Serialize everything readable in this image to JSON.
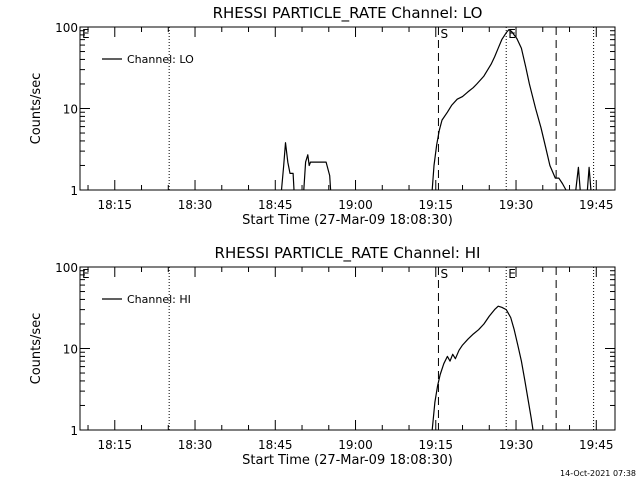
{
  "timestamp": "14-Oct-2021 07:38",
  "chart_data": [
    {
      "type": "line",
      "title": "RHESSI PARTICLE_RATE Channel: LO",
      "xlabel": "Start Time (27-Mar-09 18:08:30)",
      "ylabel": "Counts/sec",
      "xlim": [
        "18:08:30",
        "19:48:30"
      ],
      "ylim": [
        1,
        100
      ],
      "yscale": "log",
      "x_ticks": [
        "18:15",
        "18:30",
        "18:45",
        "19:00",
        "19:15",
        "19:30",
        "19:45"
      ],
      "y_ticks": [
        "1",
        "10",
        "100"
      ],
      "legend": {
        "position": "top-left",
        "entries": [
          "Channel: LO"
        ]
      },
      "markers": [
        {
          "label": "E",
          "time": "18:08:30",
          "style": "none"
        },
        {
          "label": "",
          "time": "18:25:10",
          "style": "dotted"
        },
        {
          "label": "S",
          "time": "19:15:30",
          "style": "dashed"
        },
        {
          "label": "E",
          "time": "19:28:10",
          "style": "dotted"
        },
        {
          "label": "",
          "time": "19:37:30",
          "style": "dashed"
        },
        {
          "label": "",
          "time": "19:44:30",
          "style": "dotted"
        }
      ],
      "series": [
        {
          "name": "Channel: LO",
          "segments": [
            [
              [
                "18:46:10",
                1
              ],
              [
                "18:46:35",
                2
              ],
              [
                "18:46:55",
                3.8
              ],
              [
                "18:47:20",
                2.2
              ],
              [
                "18:47:45",
                1.6
              ],
              [
                "18:48:20",
                1.6
              ],
              [
                "18:48:30",
                1
              ]
            ],
            [
              [
                "18:50:20",
                1
              ],
              [
                "18:50:40",
                2.2
              ],
              [
                "18:51:05",
                2.7
              ],
              [
                "18:51:20",
                2
              ],
              [
                "18:51:35",
                2.2
              ],
              [
                "18:52:45",
                2.2
              ],
              [
                "18:53:50",
                2.2
              ],
              [
                "18:54:30",
                2.2
              ],
              [
                "18:55:10",
                1.5
              ],
              [
                "18:55:20",
                1
              ]
            ],
            [
              [
                "19:14:20",
                1
              ],
              [
                "19:14:40",
                2
              ],
              [
                "19:15:10",
                3.6
              ],
              [
                "19:15:40",
                5.4
              ],
              [
                "19:16:10",
                7.2
              ],
              [
                "19:17:10",
                9
              ],
              [
                "19:18:00",
                11
              ],
              [
                "19:19:00",
                13
              ],
              [
                "19:20:00",
                14
              ],
              [
                "19:21:00",
                16
              ],
              [
                "19:22:00",
                18
              ],
              [
                "19:22:40",
                20
              ],
              [
                "19:24:00",
                25
              ],
              [
                "19:25:20",
                35
              ],
              [
                "19:26:00",
                43
              ],
              [
                "19:26:40",
                55
              ],
              [
                "19:27:20",
                70
              ],
              [
                "19:28:10",
                85
              ],
              [
                "19:28:40",
                93
              ],
              [
                "19:29:10",
                88
              ],
              [
                "19:30:10",
                72
              ],
              [
                "19:31:00",
                55
              ],
              [
                "19:31:50",
                32
              ],
              [
                "19:32:30",
                20
              ],
              [
                "19:33:40",
                10
              ],
              [
                "19:34:40",
                5.8
              ],
              [
                "19:35:30",
                3.4
              ],
              [
                "19:36:20",
                2
              ],
              [
                "19:37:20",
                1.4
              ],
              [
                "19:38:00",
                1.4
              ],
              [
                "19:38:40",
                1.2
              ],
              [
                "19:39:20",
                1
              ]
            ],
            [
              [
                "19:41:10",
                1
              ],
              [
                "19:41:40",
                1.9
              ],
              [
                "19:42:00",
                1
              ]
            ],
            [
              [
                "19:43:20",
                1
              ],
              [
                "19:43:40",
                1.9
              ],
              [
                "19:44:00",
                1
              ]
            ]
          ]
        }
      ]
    },
    {
      "type": "line",
      "title": "RHESSI PARTICLE_RATE Channel: HI",
      "xlabel": "Start Time (27-Mar-09 18:08:30)",
      "ylabel": "Counts/sec",
      "xlim": [
        "18:08:30",
        "19:48:30"
      ],
      "ylim": [
        1,
        100
      ],
      "yscale": "log",
      "x_ticks": [
        "18:15",
        "18:30",
        "18:45",
        "19:00",
        "19:15",
        "19:30",
        "19:45"
      ],
      "y_ticks": [
        "1",
        "10",
        "100"
      ],
      "legend": {
        "position": "top-left",
        "entries": [
          "Channel: HI"
        ]
      },
      "markers": [
        {
          "label": "E",
          "time": "18:08:30",
          "style": "none"
        },
        {
          "label": "",
          "time": "18:25:10",
          "style": "dotted"
        },
        {
          "label": "S",
          "time": "19:15:30",
          "style": "dashed"
        },
        {
          "label": "E",
          "time": "19:28:10",
          "style": "dotted"
        },
        {
          "label": "",
          "time": "19:37:30",
          "style": "dashed"
        },
        {
          "label": "",
          "time": "19:44:30",
          "style": "dotted"
        }
      ],
      "series": [
        {
          "name": "Channel: HI",
          "segments": [
            [
              [
                "19:14:20",
                1
              ],
              [
                "19:14:50",
                2.2
              ],
              [
                "19:15:20",
                3.5
              ],
              [
                "19:15:50",
                4.8
              ],
              [
                "19:16:30",
                6.5
              ],
              [
                "19:17:10",
                8
              ],
              [
                "19:17:40",
                7
              ],
              [
                "19:18:10",
                8.5
              ],
              [
                "19:18:40",
                7.5
              ],
              [
                "19:19:20",
                9.5
              ],
              [
                "19:20:00",
                11
              ],
              [
                "19:21:00",
                13
              ],
              [
                "19:22:00",
                15
              ],
              [
                "19:23:00",
                17
              ],
              [
                "19:24:00",
                20
              ],
              [
                "19:25:00",
                25
              ],
              [
                "19:26:00",
                30
              ],
              [
                "19:26:40",
                33
              ],
              [
                "19:27:20",
                32
              ],
              [
                "19:28:10",
                30
              ],
              [
                "19:29:00",
                24
              ],
              [
                "19:29:40",
                17
              ],
              [
                "19:30:20",
                11
              ],
              [
                "19:31:00",
                7
              ],
              [
                "19:31:40",
                4
              ],
              [
                "19:32:20",
                2.2
              ],
              [
                "19:32:50",
                1.4
              ],
              [
                "19:33:10",
                1
              ]
            ]
          ]
        }
      ]
    }
  ]
}
